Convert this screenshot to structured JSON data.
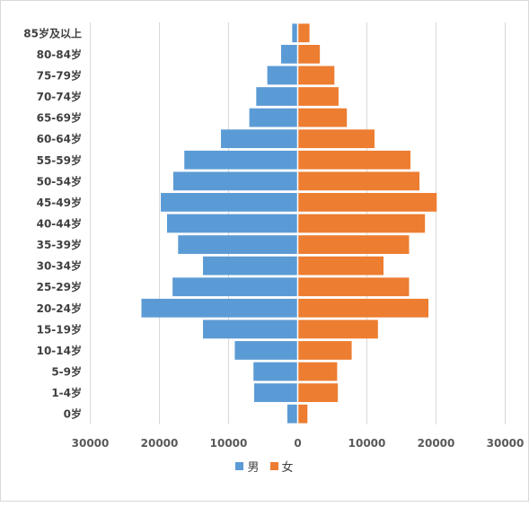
{
  "chart_data": {
    "type": "bar",
    "orientation": "horizontal",
    "title": "",
    "categories": [
      "0岁",
      "1-4岁",
      "5-9岁",
      "10-14岁",
      "15-19岁",
      "20-24岁",
      "25-29岁",
      "30-34岁",
      "35-39岁",
      "40-44岁",
      "45-49岁",
      "50-54岁",
      "55-59岁",
      "60-64岁",
      "65-69岁",
      "70-74岁",
      "75-79岁",
      "80-84岁",
      "85岁及以上"
    ],
    "series": [
      {
        "name": "男",
        "color": "#5b9bd5",
        "values": [
          1500,
          6300,
          6400,
          9100,
          13700,
          22600,
          18100,
          13700,
          17300,
          18900,
          19800,
          18000,
          16400,
          11100,
          7000,
          6000,
          4400,
          2400,
          800
        ]
      },
      {
        "name": "女",
        "color": "#ed7d31",
        "values": [
          1400,
          5800,
          5700,
          7800,
          11600,
          18900,
          16100,
          12400,
          16100,
          18400,
          20100,
          17600,
          16300,
          11100,
          7100,
          5900,
          5300,
          3200,
          1700
        ]
      }
    ],
    "xlim": [
      -30000,
      30000
    ],
    "x_ticks": [
      "30000",
      "20000",
      "10000",
      "0",
      "10000",
      "20000",
      "30000"
    ],
    "x_tick_values": [
      -30000,
      -20000,
      -10000,
      0,
      10000,
      20000,
      30000
    ],
    "grid": "vertical",
    "legend_position": "bottom"
  }
}
